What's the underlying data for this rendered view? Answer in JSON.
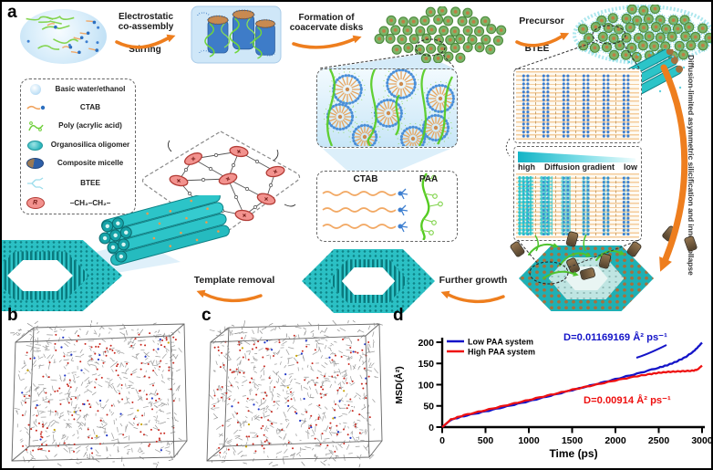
{
  "figure": {
    "panel_a": "a",
    "panel_b": "b",
    "panel_c": "c",
    "panel_d": "d"
  },
  "steps": {
    "step1_line1": "Electrostatic",
    "step1_line2": "co-assembly",
    "step1_sub": "Stirring",
    "step2_line1": "Formation of",
    "step2_line2": "coacervate disks",
    "step3_top": "Precursor",
    "step3_bottom": "BTEE",
    "template_removal": "Template removal",
    "further_growth": "Further growth",
    "vertical_note": "Diffusion-limited asymmetric silicification and inner collapse"
  },
  "legend": {
    "items": [
      {
        "icon": "water-sphere-icon",
        "label": "Basic water/ethanol"
      },
      {
        "icon": "ctab-molecule-icon",
        "label": "CTAB"
      },
      {
        "icon": "paa-molecule-icon",
        "label": "Poly (acrylic acid)"
      },
      {
        "icon": "organosilica-oligomer-icon",
        "label": "Organosilica oligomer"
      },
      {
        "icon": "composite-micelle-icon",
        "label": "Composite micelle"
      },
      {
        "icon": "btee-molecule-icon",
        "label": "BTEE"
      },
      {
        "icon": "r-group-icon",
        "label": "–CH₂–CH₂–"
      }
    ]
  },
  "insets": {
    "ctab": "CTAB",
    "paa": "PAA",
    "r_symbol": "R",
    "gradient_high": "high",
    "gradient_label": "Diffusion gradient",
    "gradient_low": "low"
  },
  "chart_data": {
    "type": "line",
    "xlabel": "Time (ps)",
    "ylabel": "MSD(Å²)",
    "xlim": [
      0,
      3000
    ],
    "ylim": [
      0,
      200
    ],
    "xticks": [
      0,
      500,
      1000,
      1500,
      2000,
      2500,
      3000
    ],
    "yticks": [
      0,
      50,
      100,
      150,
      200
    ],
    "grid": false,
    "legend_position": "top-left",
    "series": [
      {
        "name": "Low PAA system",
        "color": "#1414c8",
        "x": [
          0,
          100,
          250,
          500,
          750,
          1000,
          1250,
          1500,
          1750,
          2000,
          2250,
          2500,
          2600,
          2700,
          2800,
          2900,
          2950,
          3000
        ],
        "values": [
          0,
          17,
          26,
          37,
          49,
          61,
          74,
          87,
          100,
          113,
          126,
          140,
          146,
          154,
          164,
          178,
          188,
          199
        ]
      },
      {
        "name": "High PAA system",
        "color": "#ee1111",
        "x": [
          0,
          100,
          250,
          500,
          750,
          1000,
          1250,
          1500,
          1750,
          2000,
          2250,
          2400,
          2500,
          2600,
          2700,
          2800,
          2900,
          2950,
          3000
        ],
        "values": [
          0,
          18,
          28,
          40,
          52,
          64,
          76,
          88,
          99,
          110,
          120,
          125,
          128,
          130,
          131,
          132,
          133,
          136,
          145
        ]
      }
    ],
    "annotations": [
      {
        "text": "D=0.01169169 Å² ps⁻¹",
        "color": "#1414c8",
        "series": "Low PAA system"
      },
      {
        "text": "D=0.00914 Å² ps⁻¹",
        "color": "#ee1111",
        "series": "High PAA system"
      }
    ]
  }
}
